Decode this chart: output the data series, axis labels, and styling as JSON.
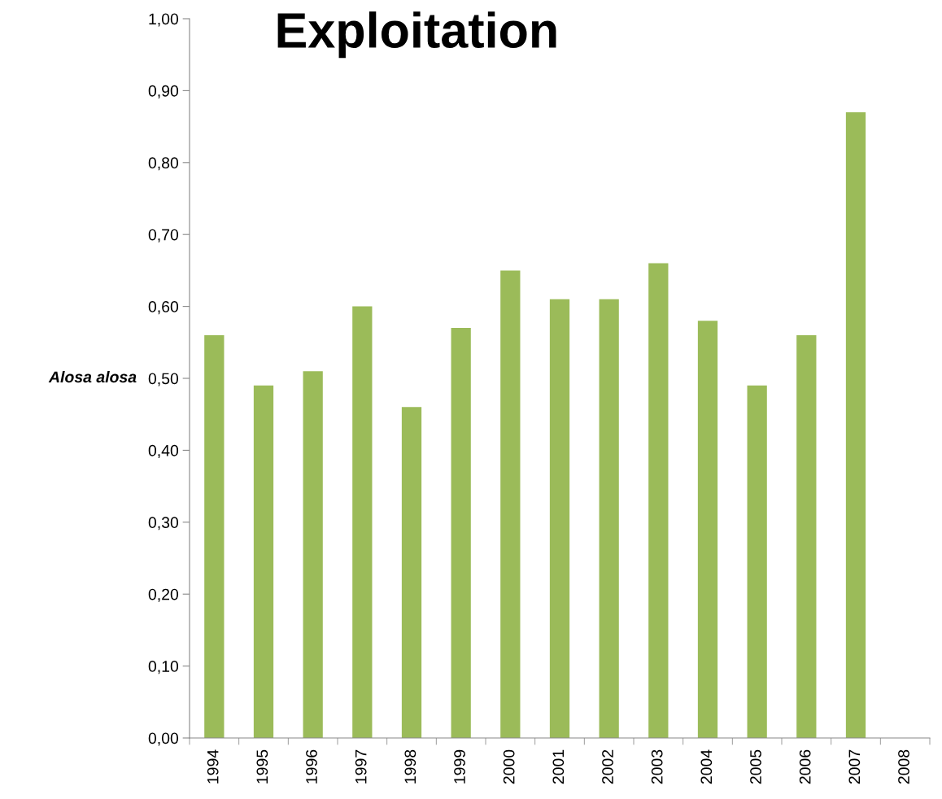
{
  "chart_data": {
    "type": "bar",
    "title": "Exploitation",
    "ylabel": "Alosa alosa",
    "categories": [
      "1994",
      "1995",
      "1996",
      "1997",
      "1998",
      "1999",
      "2000",
      "2001",
      "2002",
      "2003",
      "2004",
      "2005",
      "2006",
      "2007",
      "2008"
    ],
    "values": [
      0.56,
      0.49,
      0.51,
      0.6,
      0.46,
      0.57,
      0.65,
      0.61,
      0.61,
      0.66,
      0.58,
      0.49,
      0.56,
      0.87,
      null
    ],
    "color": "#9bbb59",
    "ylim": [
      0,
      1
    ],
    "yticks": [
      {
        "value": 0,
        "label": "0,00"
      },
      {
        "value": 0.1,
        "label": "0,10"
      },
      {
        "value": 0.2,
        "label": "0,20"
      },
      {
        "value": 0.3,
        "label": "0,30"
      },
      {
        "value": 0.4,
        "label": "0,40"
      },
      {
        "value": 0.5,
        "label": "0,50"
      },
      {
        "value": 0.6,
        "label": "0,60"
      },
      {
        "value": 0.7,
        "label": "0,70"
      },
      {
        "value": 0.8,
        "label": "0,80"
      },
      {
        "value": 0.9,
        "label": "0,90"
      },
      {
        "value": 1,
        "label": "1,00"
      }
    ],
    "grid": false,
    "legend": false
  }
}
